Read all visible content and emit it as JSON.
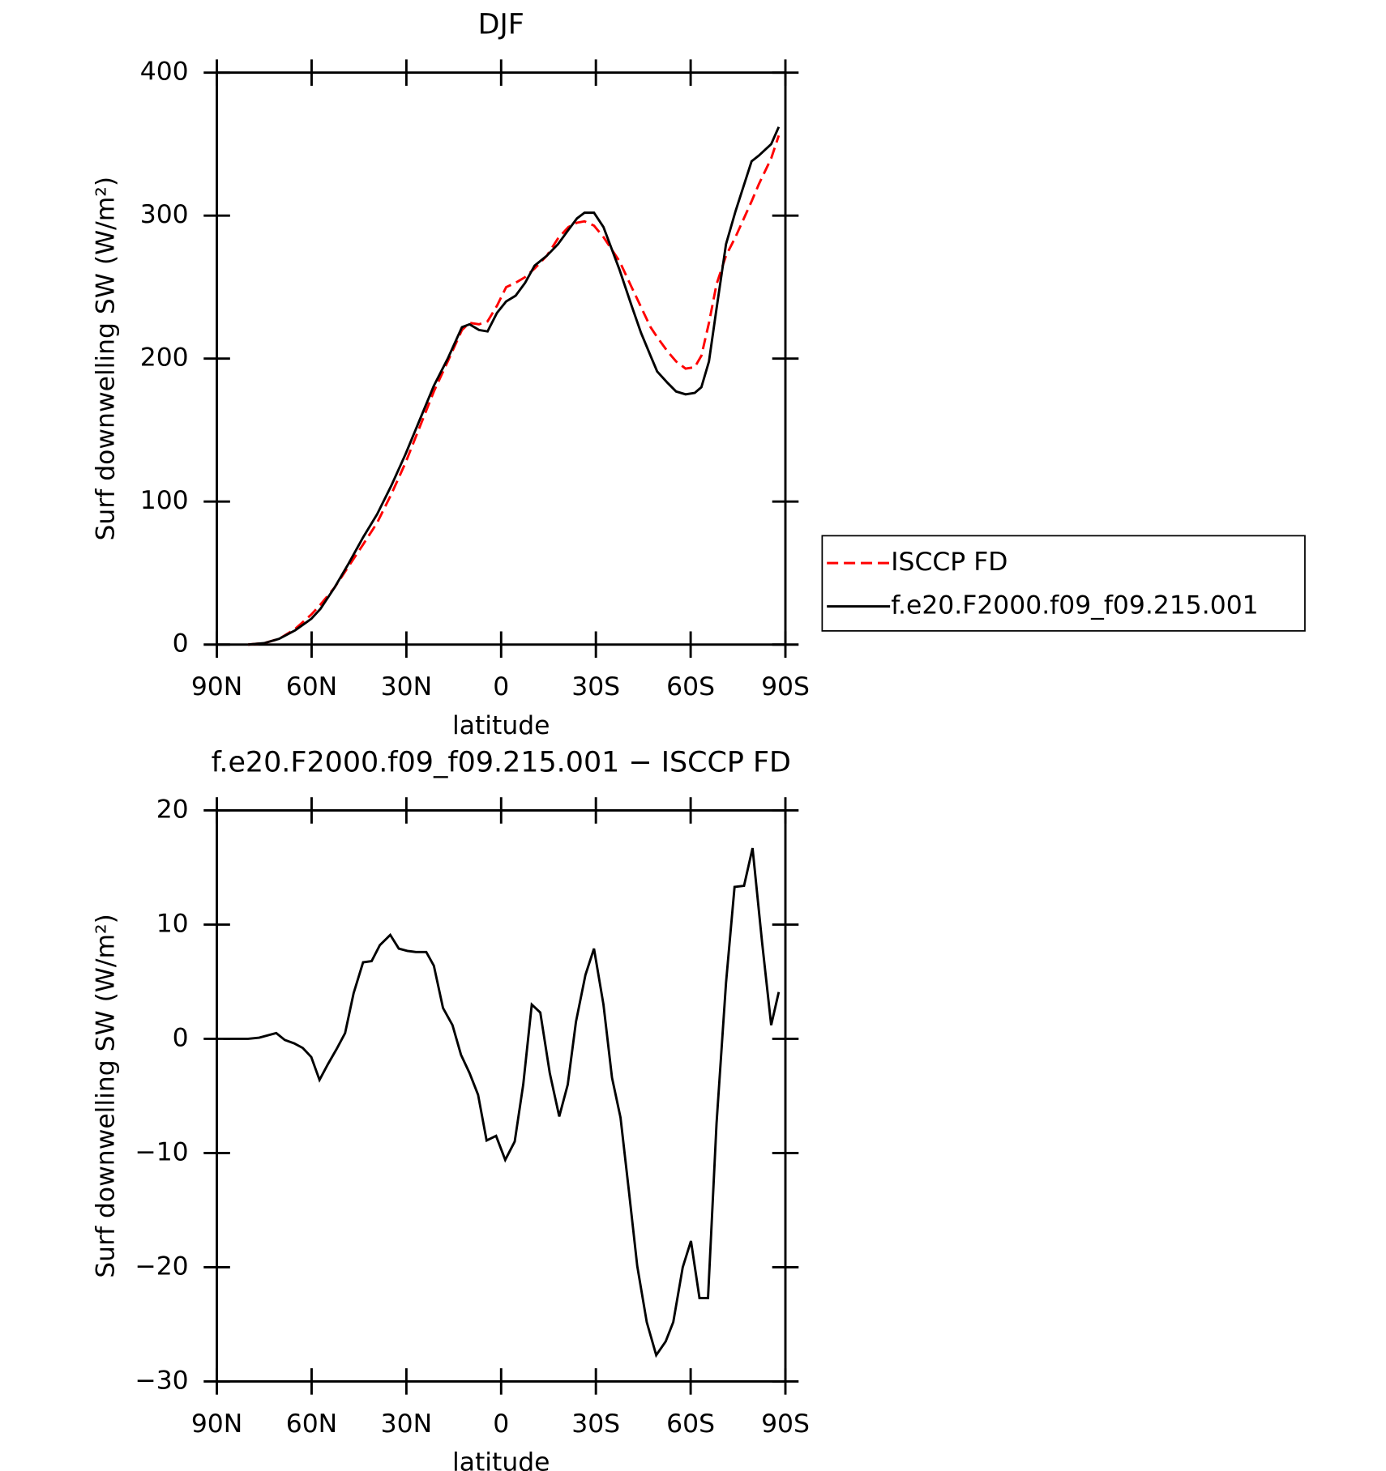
{
  "chart_data": [
    {
      "type": "line",
      "title": "DJF",
      "x_label": "latitude",
      "y_label": "Surf downwelling SW (W/m²)",
      "x": [
        80.1,
        75,
        70.3,
        65.2,
        60.1,
        57.2,
        52.7,
        48.2,
        43.7,
        39.3,
        34.8,
        30.3,
        25.8,
        21.3,
        16.9,
        12.4,
        10,
        7,
        4.3,
        1.3,
        -1.6,
        -4.6,
        -7.6,
        -10.6,
        -14.5,
        -18,
        -21.3,
        -24,
        -26.4,
        -29.4,
        -32.4,
        -37.5,
        -41.3,
        -44.3,
        -47.3,
        -49.4,
        -52.7,
        -55.4,
        -58.4,
        -61.3,
        -63.4,
        -65.8,
        -68.2,
        -71.2,
        -74.2,
        -79.3,
        -81.6,
        -85.5,
        -87.9
      ],
      "series": [
        {
          "name": "ISCCP FD",
          "color": "#ff0000",
          "style": "dashed",
          "values": [
            0,
            1,
            4,
            11,
            21,
            28,
            40,
            55,
            70,
            85,
            105,
            127,
            152,
            177,
            198,
            220,
            225,
            224,
            226,
            237,
            250,
            253,
            257,
            263,
            272,
            284,
            292,
            295,
            296,
            293,
            285,
            268,
            250,
            236,
            222,
            215,
            205,
            198,
            193,
            194,
            202,
            225,
            252,
            272,
            285,
            310,
            322,
            340,
            356
          ]
        },
        {
          "name": "f.e20.F2000.f09_f09.215.001",
          "color": "#000000",
          "style": "solid",
          "values": [
            0,
            1,
            4,
            10,
            18,
            25,
            40,
            57,
            75,
            91,
            111,
            133,
            157,
            181,
            200,
            222,
            224,
            220,
            219,
            232,
            240,
            244,
            253,
            265,
            272,
            280,
            290,
            298,
            302,
            302,
            292,
            262,
            237,
            218,
            202,
            191,
            183,
            177,
            175,
            176,
            180,
            198,
            235,
            280,
            303,
            338,
            342,
            350,
            362
          ]
        }
      ],
      "xlim": [
        90,
        -90
      ],
      "xticks": [
        {
          "value": 90,
          "label": "90N"
        },
        {
          "value": 60,
          "label": "60N"
        },
        {
          "value": 30,
          "label": "30N"
        },
        0,
        {
          "value": -30,
          "label": "30S"
        },
        {
          "value": -60,
          "label": "60S"
        },
        {
          "value": -90,
          "label": "90S"
        }
      ],
      "ylim": [
        0,
        400
      ],
      "yticks": [
        0,
        100,
        200,
        300,
        400
      ],
      "legend": "right"
    },
    {
      "type": "line",
      "title": "f.e20.F2000.f09_f09.215.001 − ISCCP FD",
      "x_label": "latitude",
      "y_label": "Surf downwelling SW (W/m²)",
      "x": [
        87.9,
        80.1,
        76.6,
        71.2,
        68.5,
        65.5,
        62.8,
        60.1,
        57.5,
        54.8,
        52.1,
        49.4,
        46.7,
        43.7,
        41,
        38.4,
        35.1,
        32.4,
        29.7,
        27,
        23.7,
        21.3,
        18.4,
        15.4,
        12.7,
        10,
        7.3,
        4.6,
        1.6,
        -1.3,
        -4.3,
        -7,
        -9.7,
        -12.4,
        -15.4,
        -18.4,
        -21.1,
        -23.7,
        -26.7,
        -29.4,
        -32.4,
        -35.1,
        -37.8,
        -40.4,
        -43.1,
        -46.1,
        -49.1,
        -52.1,
        -54.5,
        -57.5,
        -60.1,
        -62.8,
        -65.5,
        -68.2,
        -71.2,
        -73.9,
        -76.9,
        -79.6,
        -82.6,
        -85.5,
        -87.9
      ],
      "series": [
        {
          "color": "#000000",
          "style": "solid",
          "values": [
            0,
            0,
            0.1,
            0.5,
            -0.1,
            -0.4,
            -0.8,
            -1.6,
            -3.6,
            -2.2,
            -0.9,
            0.5,
            4,
            6.7,
            6.8,
            8.2,
            9.1,
            7.9,
            7.7,
            7.6,
            7.6,
            6.4,
            2.7,
            1.2,
            -1.4,
            -3,
            -4.9,
            -8.9,
            -8.5,
            -10.6,
            -9,
            -4,
            3,
            2.3,
            -3,
            -6.8,
            -4,
            1.5,
            5.6,
            7.9,
            3,
            -3.4,
            -6.9,
            -13.2,
            -19.9,
            -24.8,
            -27.7,
            -26.5,
            -24.8,
            -20,
            -17.7,
            -22.7,
            -22.7,
            -7.4,
            4.9,
            13.3,
            13.4,
            16.7,
            8.5,
            1.2,
            4.1
          ]
        }
      ],
      "xlim": [
        90,
        -90
      ],
      "xticks": [
        {
          "value": 90,
          "label": "90N"
        },
        {
          "value": 60,
          "label": "60N"
        },
        {
          "value": 30,
          "label": "30N"
        },
        0,
        {
          "value": -30,
          "label": "30S"
        },
        {
          "value": -60,
          "label": "60S"
        },
        {
          "value": -90,
          "label": "90S"
        }
      ],
      "ylim": [
        -30,
        20
      ],
      "yticks": [
        -30,
        -20,
        -10,
        0,
        10,
        20
      ]
    }
  ]
}
